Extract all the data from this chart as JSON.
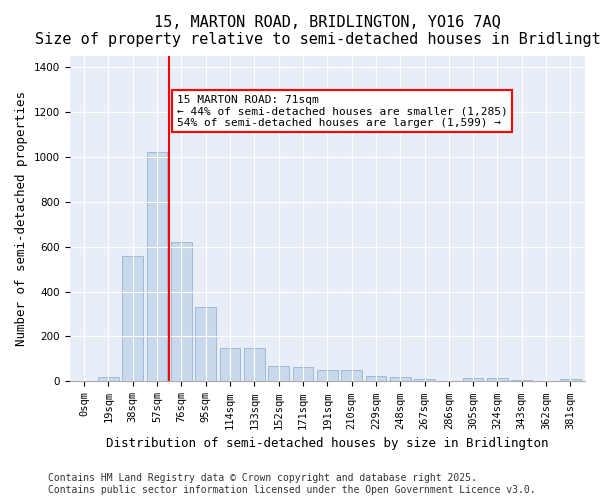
{
  "title": "15, MARTON ROAD, BRIDLINGTON, YO16 7AQ",
  "subtitle": "Size of property relative to semi-detached houses in Bridlington",
  "xlabel": "Distribution of semi-detached houses by size in Bridlington",
  "ylabel": "Number of semi-detached properties",
  "bar_labels": [
    "0sqm",
    "19sqm",
    "38sqm",
    "57sqm",
    "76sqm",
    "95sqm",
    "114sqm",
    "133sqm",
    "152sqm",
    "171sqm",
    "191sqm",
    "210sqm",
    "229sqm",
    "248sqm",
    "267sqm",
    "286sqm",
    "305sqm",
    "324sqm",
    "343sqm",
    "362sqm",
    "381sqm"
  ],
  "bar_values": [
    0,
    20,
    560,
    1020,
    620,
    330,
    150,
    150,
    70,
    65,
    50,
    50,
    25,
    20,
    10,
    0,
    15,
    15,
    5,
    0,
    10
  ],
  "bar_color": "#c9d9ec",
  "bar_edgecolor": "#a0b8d8",
  "property_value": 71,
  "property_label": "15 MARTON ROAD: 71sqm",
  "vline_color": "red",
  "vline_position": 3.5,
  "annotation_text": "15 MARTON ROAD: 71sqm\n← 44% of semi-detached houses are smaller (1,285)\n54% of semi-detached houses are larger (1,599) →",
  "annotation_box_color": "white",
  "annotation_box_edgecolor": "red",
  "ylim": [
    0,
    1450
  ],
  "yticks": [
    0,
    200,
    400,
    600,
    800,
    1000,
    1200,
    1400
  ],
  "background_color": "#e8eef7",
  "footer_text": "Contains HM Land Registry data © Crown copyright and database right 2025.\nContains public sector information licensed under the Open Government Licence v3.0.",
  "title_fontsize": 11,
  "subtitle_fontsize": 10,
  "xlabel_fontsize": 9,
  "ylabel_fontsize": 9,
  "tick_fontsize": 7.5,
  "annotation_fontsize": 8,
  "footer_fontsize": 7
}
